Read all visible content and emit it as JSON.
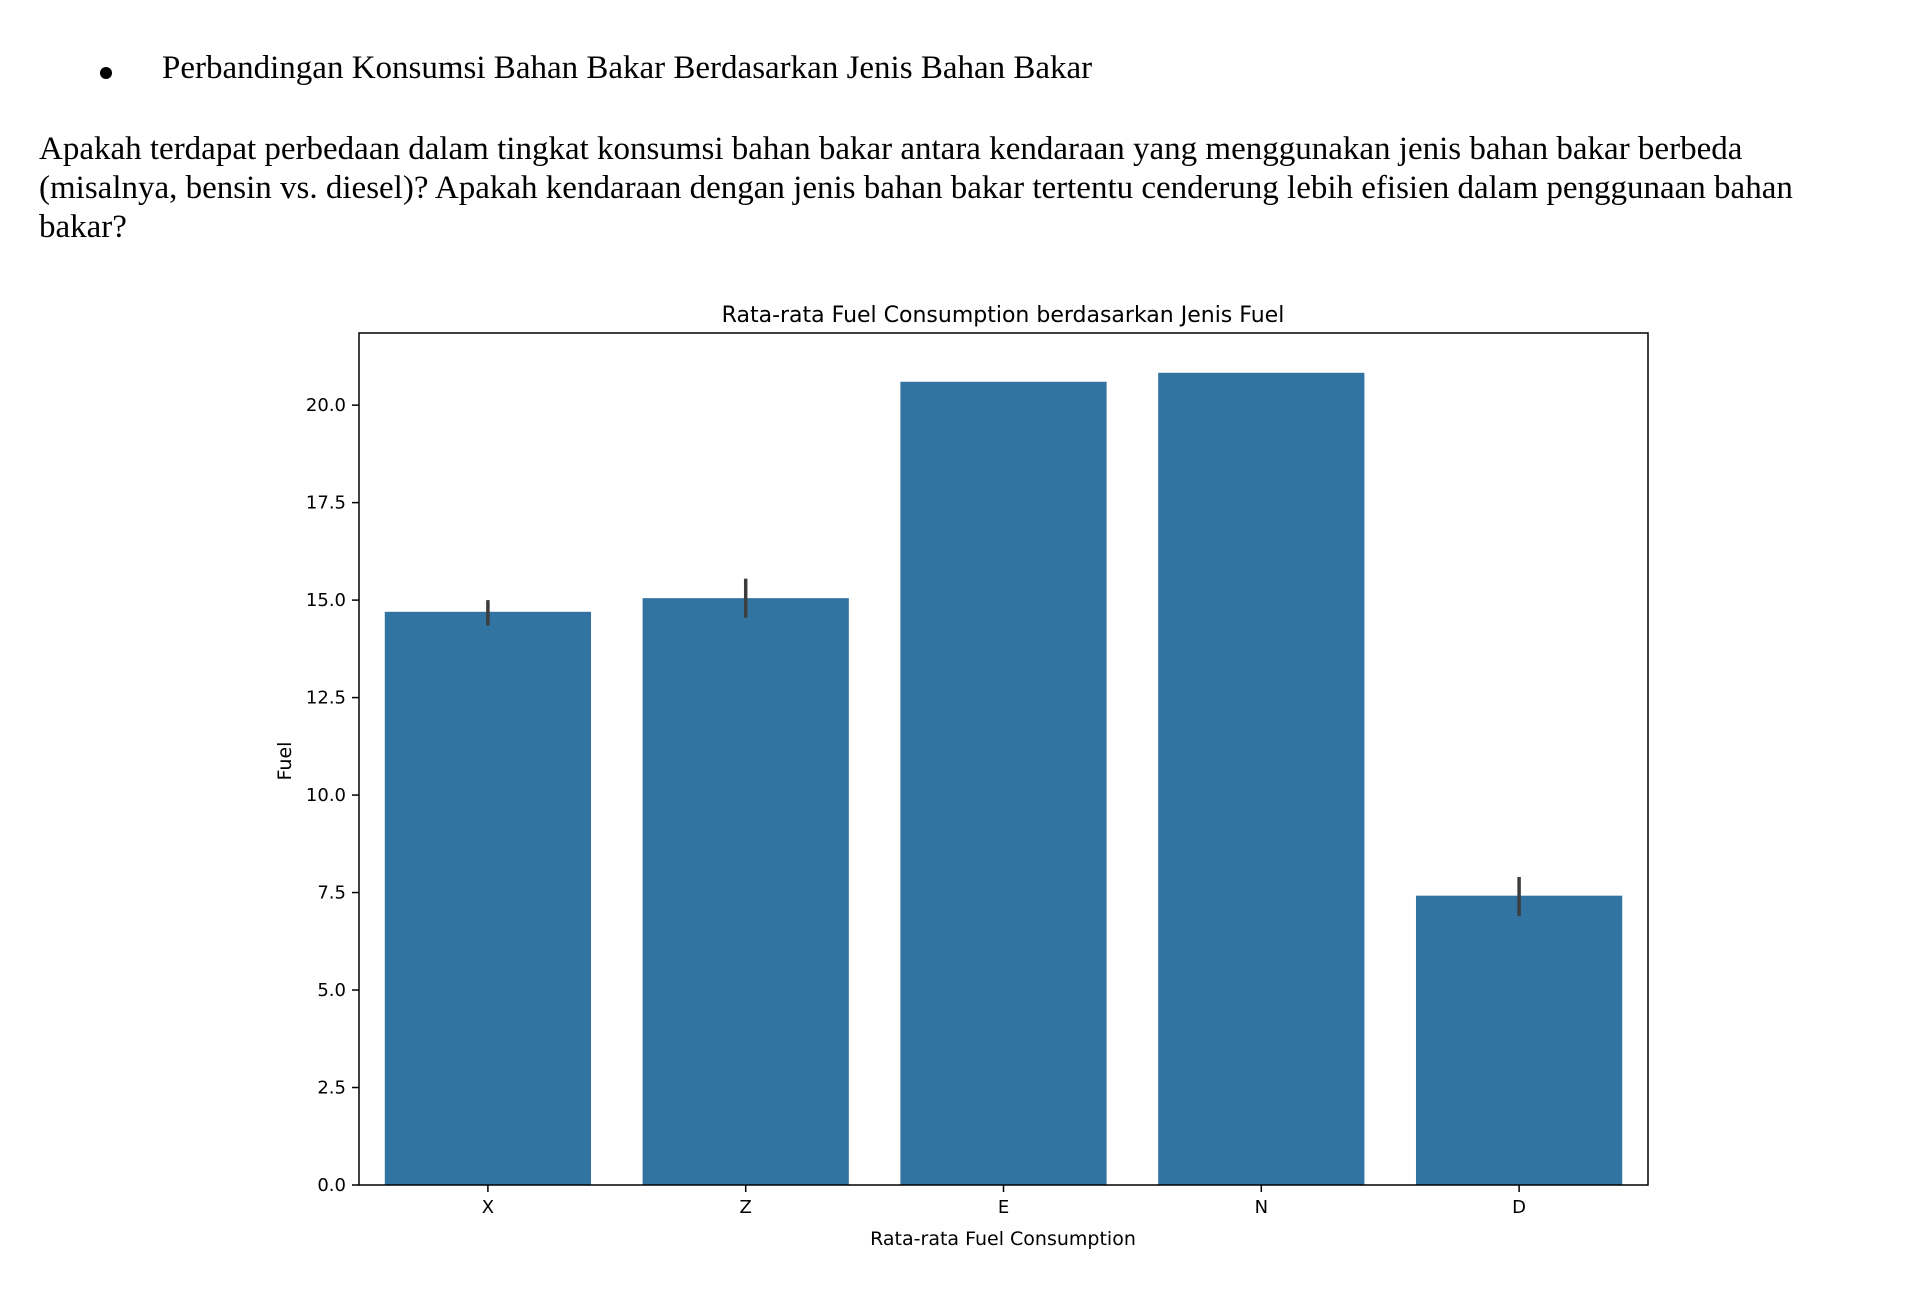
{
  "document": {
    "bullet_heading": "Perbandingan Konsumsi Bahan Bakar Berdasarkan Jenis Bahan Bakar",
    "paragraph_lines": [
      "Apakah terdapat perbedaan dalam tingkat konsumsi bahan bakar antara kendaraan yang menggunakan jenis bahan bakar berbeda",
      "(misalnya, bensin vs. diesel)? Apakah kendaraan dengan jenis bahan bakar tertentu cenderung lebih efisien dalam penggunaan bahan",
      "bakar?"
    ]
  },
  "chart_data": {
    "type": "bar",
    "title": "Rata-rata Fuel Consumption berdasarkan Jenis Fuel",
    "xlabel": "Rata-rata Fuel Consumption",
    "ylabel": "Fuel",
    "categories": [
      "X",
      "Z",
      "E",
      "N",
      "D"
    ],
    "values": [
      14.7,
      15.05,
      20.6,
      20.83,
      7.42
    ],
    "error_bars": [
      [
        14.35,
        15.0
      ],
      [
        14.55,
        15.55
      ],
      null,
      null,
      [
        6.9,
        7.9
      ]
    ],
    "ylim": [
      0,
      21.85
    ],
    "yticks": [
      "0.0",
      "2.5",
      "5.0",
      "7.5",
      "10.0",
      "12.5",
      "15.0",
      "17.5",
      "20.0"
    ],
    "bar_color": "#3274a1",
    "errorbar_color": "#3d3d3d",
    "grid": false,
    "legend": "none"
  }
}
